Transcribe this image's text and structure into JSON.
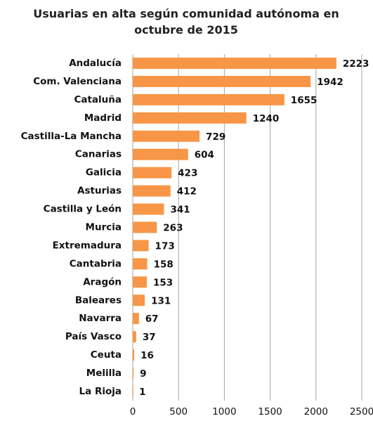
{
  "chart_data": {
    "type": "bar",
    "orientation": "horizontal",
    "title": "Usuarias en alta según comunidad autónoma en octubre de 2015",
    "categories": [
      "Andalucía",
      "Com. Valenciana",
      "Cataluña",
      "Madrid",
      "Castilla-La Mancha",
      "Canarias",
      "Galicia",
      "Asturias",
      "Castilla y León",
      "Murcia",
      "Extremadura",
      "Cantabria",
      "Aragón",
      "Baleares",
      "Navarra",
      "País Vasco",
      "Ceuta",
      "Melilla",
      "La Rioja"
    ],
    "values": [
      2223,
      1942,
      1655,
      1240,
      729,
      604,
      423,
      412,
      341,
      263,
      173,
      158,
      153,
      131,
      67,
      37,
      16,
      9,
      1
    ],
    "color": "#f79646",
    "xlim": [
      0,
      2500
    ],
    "xticks": [
      0,
      500,
      1000,
      1500,
      2000,
      2500
    ],
    "grid": true
  }
}
